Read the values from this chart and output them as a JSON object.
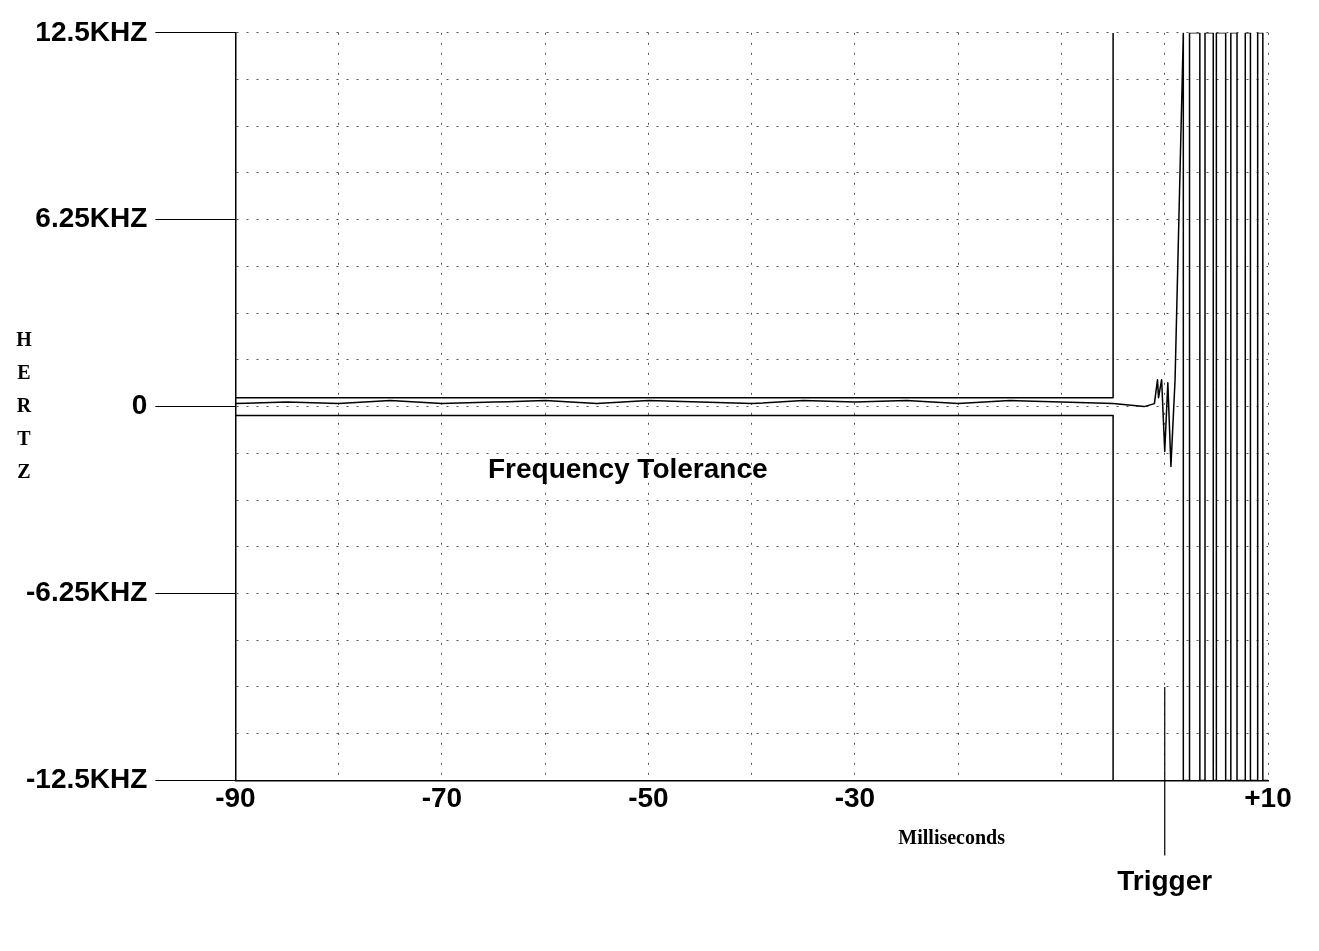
{
  "chart_data": {
    "type": "line",
    "xlabel": "Milliseconds",
    "ylabel": "HERTZ",
    "xlim": [
      -90,
      10
    ],
    "ylim": [
      -12.5,
      12.5
    ],
    "xticks": [
      -90,
      {
        "value": -80,
        "label": null
      },
      -70,
      {
        "value": -60,
        "label": null
      },
      -50,
      {
        "value": -40,
        "label": null
      },
      -30,
      {
        "value": -20,
        "label": null
      },
      {
        "value": -10,
        "label": null
      },
      {
        "value": 0,
        "label": null
      },
      {
        "value": 10,
        "label": "+10"
      }
    ],
    "yticks": [
      {
        "value": -12.5,
        "label": "-12.5KHZ"
      },
      {
        "value": -10.9375,
        "label": null
      },
      {
        "value": -9.375,
        "label": null
      },
      {
        "value": -7.8125,
        "label": null
      },
      {
        "value": -6.25,
        "label": "-6.25KHZ"
      },
      {
        "value": -4.6875,
        "label": null
      },
      {
        "value": -3.125,
        "label": null
      },
      {
        "value": -1.5625,
        "label": null
      },
      0,
      {
        "value": 1.5625,
        "label": null
      },
      {
        "value": 3.125,
        "label": null
      },
      {
        "value": 4.6875,
        "label": null
      },
      {
        "value": 6.25,
        "label": "6.25KHZ"
      },
      {
        "value": 7.8125,
        "label": null
      },
      {
        "value": 9.375,
        "label": null
      },
      {
        "value": 10.9375,
        "label": null
      },
      {
        "value": 12.5,
        "label": "12.5KHZ"
      }
    ],
    "grid": true,
    "legend": false,
    "marker": "none",
    "line_style": "solid",
    "series": [
      {
        "color": "#000000",
        "x": [
          -90,
          -85,
          -80,
          -75,
          -70,
          -65,
          -60,
          -55,
          -50,
          -45,
          -40,
          -35,
          -30,
          -25,
          -20,
          -15,
          -10,
          -5,
          -2,
          -1,
          -0.7,
          -0.6,
          -0.3,
          0,
          0.3,
          0.6,
          1.0,
          1.8,
          1.8,
          2.4,
          2.4,
          3.4,
          3.4,
          3.9,
          3.9,
          4.7,
          4.7,
          5.0,
          5.0,
          5.9,
          5.9,
          6.4,
          6.4,
          7.0,
          7.0,
          7.8,
          7.8,
          8.3,
          8.3,
          9.0,
          9.0,
          9.5,
          9.5,
          10
        ],
        "values": [
          0.1,
          0.15,
          0.1,
          0.2,
          0.1,
          0.15,
          0.2,
          0.1,
          0.2,
          0.15,
          0.1,
          0.2,
          0.15,
          0.2,
          0.1,
          0.2,
          0.15,
          0.1,
          0,
          0.1,
          0.9,
          0.3,
          0.9,
          -1.5,
          0.8,
          -2,
          0.9,
          12.5,
          -12.5,
          -12.5,
          12.5,
          12.5,
          -12.5,
          -12.5,
          12.5,
          12.5,
          -12.5,
          -12.5,
          12.5,
          12.5,
          -12.5,
          -12.5,
          12.5,
          12.5,
          -12.5,
          -12.5,
          12.5,
          12.5,
          -12.5,
          -12.5,
          12.5,
          12.5,
          -12.5,
          -12.5
        ]
      },
      {
        "color": "#000000",
        "x": [
          -90,
          -5,
          -5
        ],
        "values": [
          0.3,
          0.3,
          12.5
        ]
      },
      {
        "color": "#000000",
        "x": [
          -90,
          -5,
          -5
        ],
        "values": [
          -0.3,
          -0.3,
          -12.5
        ]
      }
    ],
    "ref_lines": [
      {
        "axis": "x",
        "value": 0,
        "label": "Trigger"
      }
    ],
    "annotations": [
      "Frequency Tolerance"
    ]
  }
}
